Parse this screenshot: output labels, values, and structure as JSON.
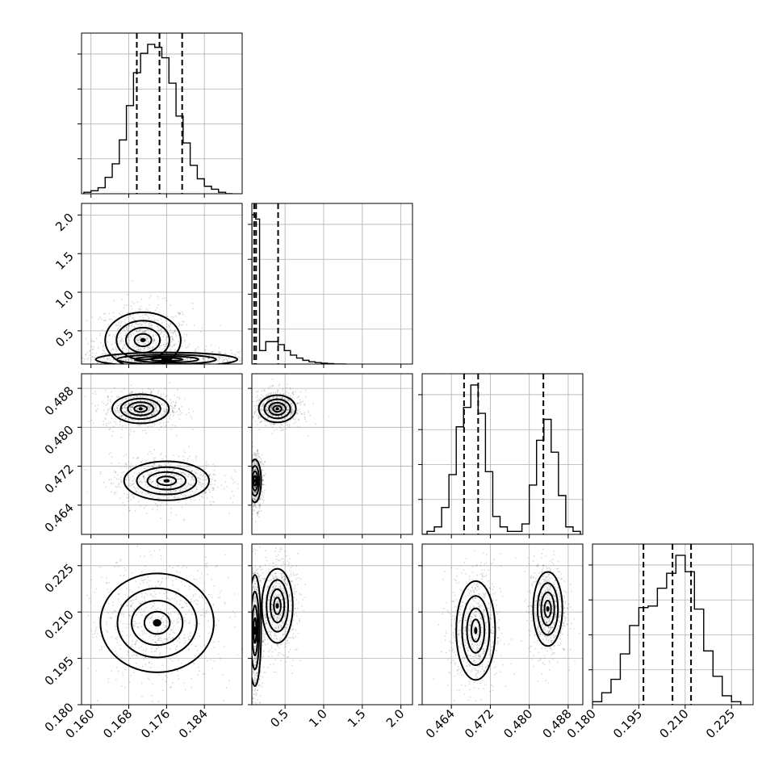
{
  "chart_data": {
    "type": "corner",
    "title": "",
    "parameters": [
      "",
      "",
      "",
      ""
    ],
    "grid": true,
    "ranges": [
      [
        0.158,
        0.192
      ],
      [
        0.07,
        2.15
      ],
      [
        0.458,
        0.491
      ],
      [
        0.18,
        0.232
      ]
    ],
    "ticks": [
      [
        0.16,
        0.168,
        0.176,
        0.184
      ],
      [
        0.5,
        1.0,
        1.5,
        2.0
      ],
      [
        0.464,
        0.472,
        0.48,
        0.488
      ],
      [
        0.18,
        0.195,
        0.21,
        0.225
      ]
    ],
    "tick_labels": [
      [
        "0.160",
        "0.168",
        "0.176",
        "0.184"
      ],
      [
        "0.5",
        "1.0",
        "1.5",
        "2.0"
      ],
      [
        "0.464",
        "0.472",
        "0.480",
        "0.488"
      ],
      [
        "0.180",
        "0.195",
        "0.210",
        "0.225"
      ]
    ],
    "row_tick_labels": [
      [],
      [
        "0.5",
        "1.0",
        "1.5",
        "2.0"
      ],
      [
        "0.464",
        "0.472",
        "0.480",
        "0.488"
      ],
      [
        "0.180",
        "0.195",
        "0.210",
        "0.225"
      ]
    ],
    "histograms": [
      {
        "param": 0,
        "bin_edges": [
          0.1585,
          0.16,
          0.1615,
          0.163,
          0.1645,
          0.166,
          0.1675,
          0.169,
          0.1705,
          0.172,
          0.1735,
          0.175,
          0.1765,
          0.178,
          0.1795,
          0.181,
          0.1825,
          0.184,
          0.1855,
          0.187,
          0.1885,
          0.19
        ],
        "counts": [
          0.01,
          0.02,
          0.04,
          0.11,
          0.2,
          0.36,
          0.59,
          0.81,
          0.94,
          1.0,
          0.98,
          0.91,
          0.74,
          0.52,
          0.34,
          0.19,
          0.1,
          0.05,
          0.03,
          0.01,
          0.0
        ],
        "quantiles": [
          0.1697,
          0.1745,
          0.1793
        ]
      },
      {
        "param": 1,
        "bin_edges": [
          0.07,
          0.12,
          0.17,
          0.25,
          0.33,
          0.41,
          0.49,
          0.57,
          0.65,
          0.73,
          0.81,
          0.89,
          0.97,
          1.05,
          1.13,
          1.21,
          1.29
        ],
        "counts": [
          1.0,
          0.97,
          0.09,
          0.15,
          0.15,
          0.13,
          0.09,
          0.06,
          0.04,
          0.025,
          0.015,
          0.01,
          0.006,
          0.003,
          0.0,
          0.0
        ],
        "quantiles": [
          0.1,
          0.125,
          0.41
        ]
      },
      {
        "param": 2,
        "bin_edges": [
          0.4575,
          0.459,
          0.4605,
          0.462,
          0.4635,
          0.465,
          0.4665,
          0.468,
          0.4695,
          0.471,
          0.4725,
          0.474,
          0.4755,
          0.477,
          0.4785,
          0.48,
          0.4815,
          0.483,
          0.4845,
          0.486,
          0.4875,
          0.489,
          0.4905
        ],
        "counts": [
          0.0,
          0.02,
          0.05,
          0.18,
          0.4,
          0.72,
          0.85,
          1.0,
          0.81,
          0.42,
          0.12,
          0.05,
          0.02,
          0.02,
          0.07,
          0.33,
          0.63,
          0.77,
          0.55,
          0.26,
          0.05,
          0.02
        ],
        "quantiles": [
          0.4666,
          0.4695,
          0.4829
        ]
      },
      {
        "param": 3,
        "bin_edges": [
          0.18,
          0.183,
          0.186,
          0.189,
          0.192,
          0.195,
          0.198,
          0.201,
          0.204,
          0.207,
          0.21,
          0.213,
          0.216,
          0.219,
          0.222,
          0.225,
          0.228
        ],
        "counts": [
          0.02,
          0.08,
          0.17,
          0.34,
          0.53,
          0.65,
          0.66,
          0.78,
          0.88,
          1.0,
          0.89,
          0.64,
          0.36,
          0.19,
          0.06,
          0.02
        ],
        "quantiles": [
          0.1965,
          0.2059,
          0.2119
        ]
      }
    ],
    "pairs": [
      {
        "x_param": 0,
        "y_param": 1,
        "centers": [
          [
            0.171,
            0.38
          ],
          [
            0.176,
            0.13
          ]
        ],
        "widths": [
          [
            0.004,
            0.18
          ],
          [
            0.0075,
            0.045
          ]
        ]
      },
      {
        "x_param": 0,
        "y_param": 2,
        "centers": [
          [
            0.1705,
            0.4838
          ],
          [
            0.176,
            0.469
          ]
        ],
        "widths": [
          [
            0.003,
            0.0015
          ],
          [
            0.0045,
            0.002
          ]
        ]
      },
      {
        "x_param": 1,
        "y_param": 2,
        "centers": [
          [
            0.4,
            0.4838
          ],
          [
            0.11,
            0.469
          ]
        ],
        "widths": [
          [
            0.12,
            0.0014
          ],
          [
            0.04,
            0.0022
          ]
        ]
      },
      {
        "x_param": 0,
        "y_param": 3,
        "centers": [
          [
            0.174,
            0.2065
          ]
        ],
        "widths": [
          [
            0.006,
            0.008
          ]
        ]
      },
      {
        "x_param": 1,
        "y_param": 3,
        "centers": [
          [
            0.11,
            0.204
          ],
          [
            0.4,
            0.212
          ]
        ],
        "widths": [
          [
            0.04,
            0.009
          ],
          [
            0.1,
            0.006
          ]
        ]
      },
      {
        "x_param": 2,
        "y_param": 3,
        "centers": [
          [
            0.469,
            0.204
          ],
          [
            0.4838,
            0.211
          ]
        ],
        "widths": [
          [
            0.002,
            0.008
          ],
          [
            0.0015,
            0.006
          ]
        ]
      }
    ]
  }
}
